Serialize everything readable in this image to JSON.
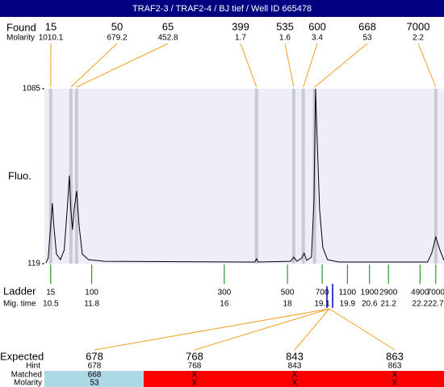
{
  "chart_data": {
    "type": "line",
    "title": "TRAF2-3 / TRAF2-4 / BJ tief / Well ID 665478",
    "ylabel": "Fluo.",
    "color": "#000000",
    "xlim": [
      10.3,
      22.96
    ],
    "ylim": [
      119,
      1085
    ],
    "yticks": [
      119,
      1085
    ],
    "x": [
      10.35,
      10.42,
      10.5,
      10.55,
      10.6,
      10.68,
      10.81,
      10.93,
      11.04,
      11.09,
      11.14,
      11.19,
      11.24,
      11.32,
      11.4,
      11.5,
      11.7,
      12.21,
      16.56,
      16.97,
      17.02,
      17.07,
      18.1,
      18.2,
      18.3,
      18.45,
      18.53,
      18.61,
      18.76,
      18.84,
      18.89,
      18.94,
      19.02,
      19.12,
      19.27,
      19.63,
      22.44,
      22.57,
      22.7,
      22.83,
      22.96
    ],
    "values": [
      123,
      150,
      328,
      453,
      328,
      172,
      141,
      195,
      462,
      605,
      417,
      306,
      417,
      520,
      328,
      172,
      141,
      132,
      128,
      128,
      146,
      128,
      132,
      155,
      132,
      150,
      177,
      137,
      155,
      462,
      1085,
      818,
      417,
      208,
      141,
      128,
      128,
      177,
      266,
      195,
      137
    ],
    "found": {
      "label": "Found",
      "sublabel": "Molarity",
      "sizes": [
        15,
        50,
        65,
        399,
        535,
        600,
        668,
        7000
      ],
      "molarity": [
        1010.1,
        679.2,
        452.8,
        1.7,
        1.6,
        3.4,
        53,
        2.2
      ],
      "x": [
        10.5,
        11.14,
        11.32,
        17.02,
        18.2,
        18.5,
        18.86,
        22.7
      ]
    },
    "ladder": {
      "label": "Ladder",
      "sublabel": "Mig. time",
      "sizes": [
        15,
        100,
        300,
        500,
        700,
        1100,
        1900,
        2900,
        4900,
        7000
      ],
      "x": [
        10.5,
        11.8,
        16,
        18,
        19.1,
        19.9,
        20.6,
        21.2,
        22.2,
        22.7
      ]
    },
    "expected": {
      "label": "Expected",
      "hint_label": "Hint",
      "matched_label": "Matched",
      "molarity_label": "Molarity",
      "sizes": [
        678,
        768,
        843,
        863
      ],
      "hint": [
        678,
        768,
        843,
        863
      ],
      "matched": [
        668,
        "X",
        "X",
        "X"
      ],
      "molarity": [
        53,
        "X",
        "X",
        "X"
      ]
    }
  }
}
